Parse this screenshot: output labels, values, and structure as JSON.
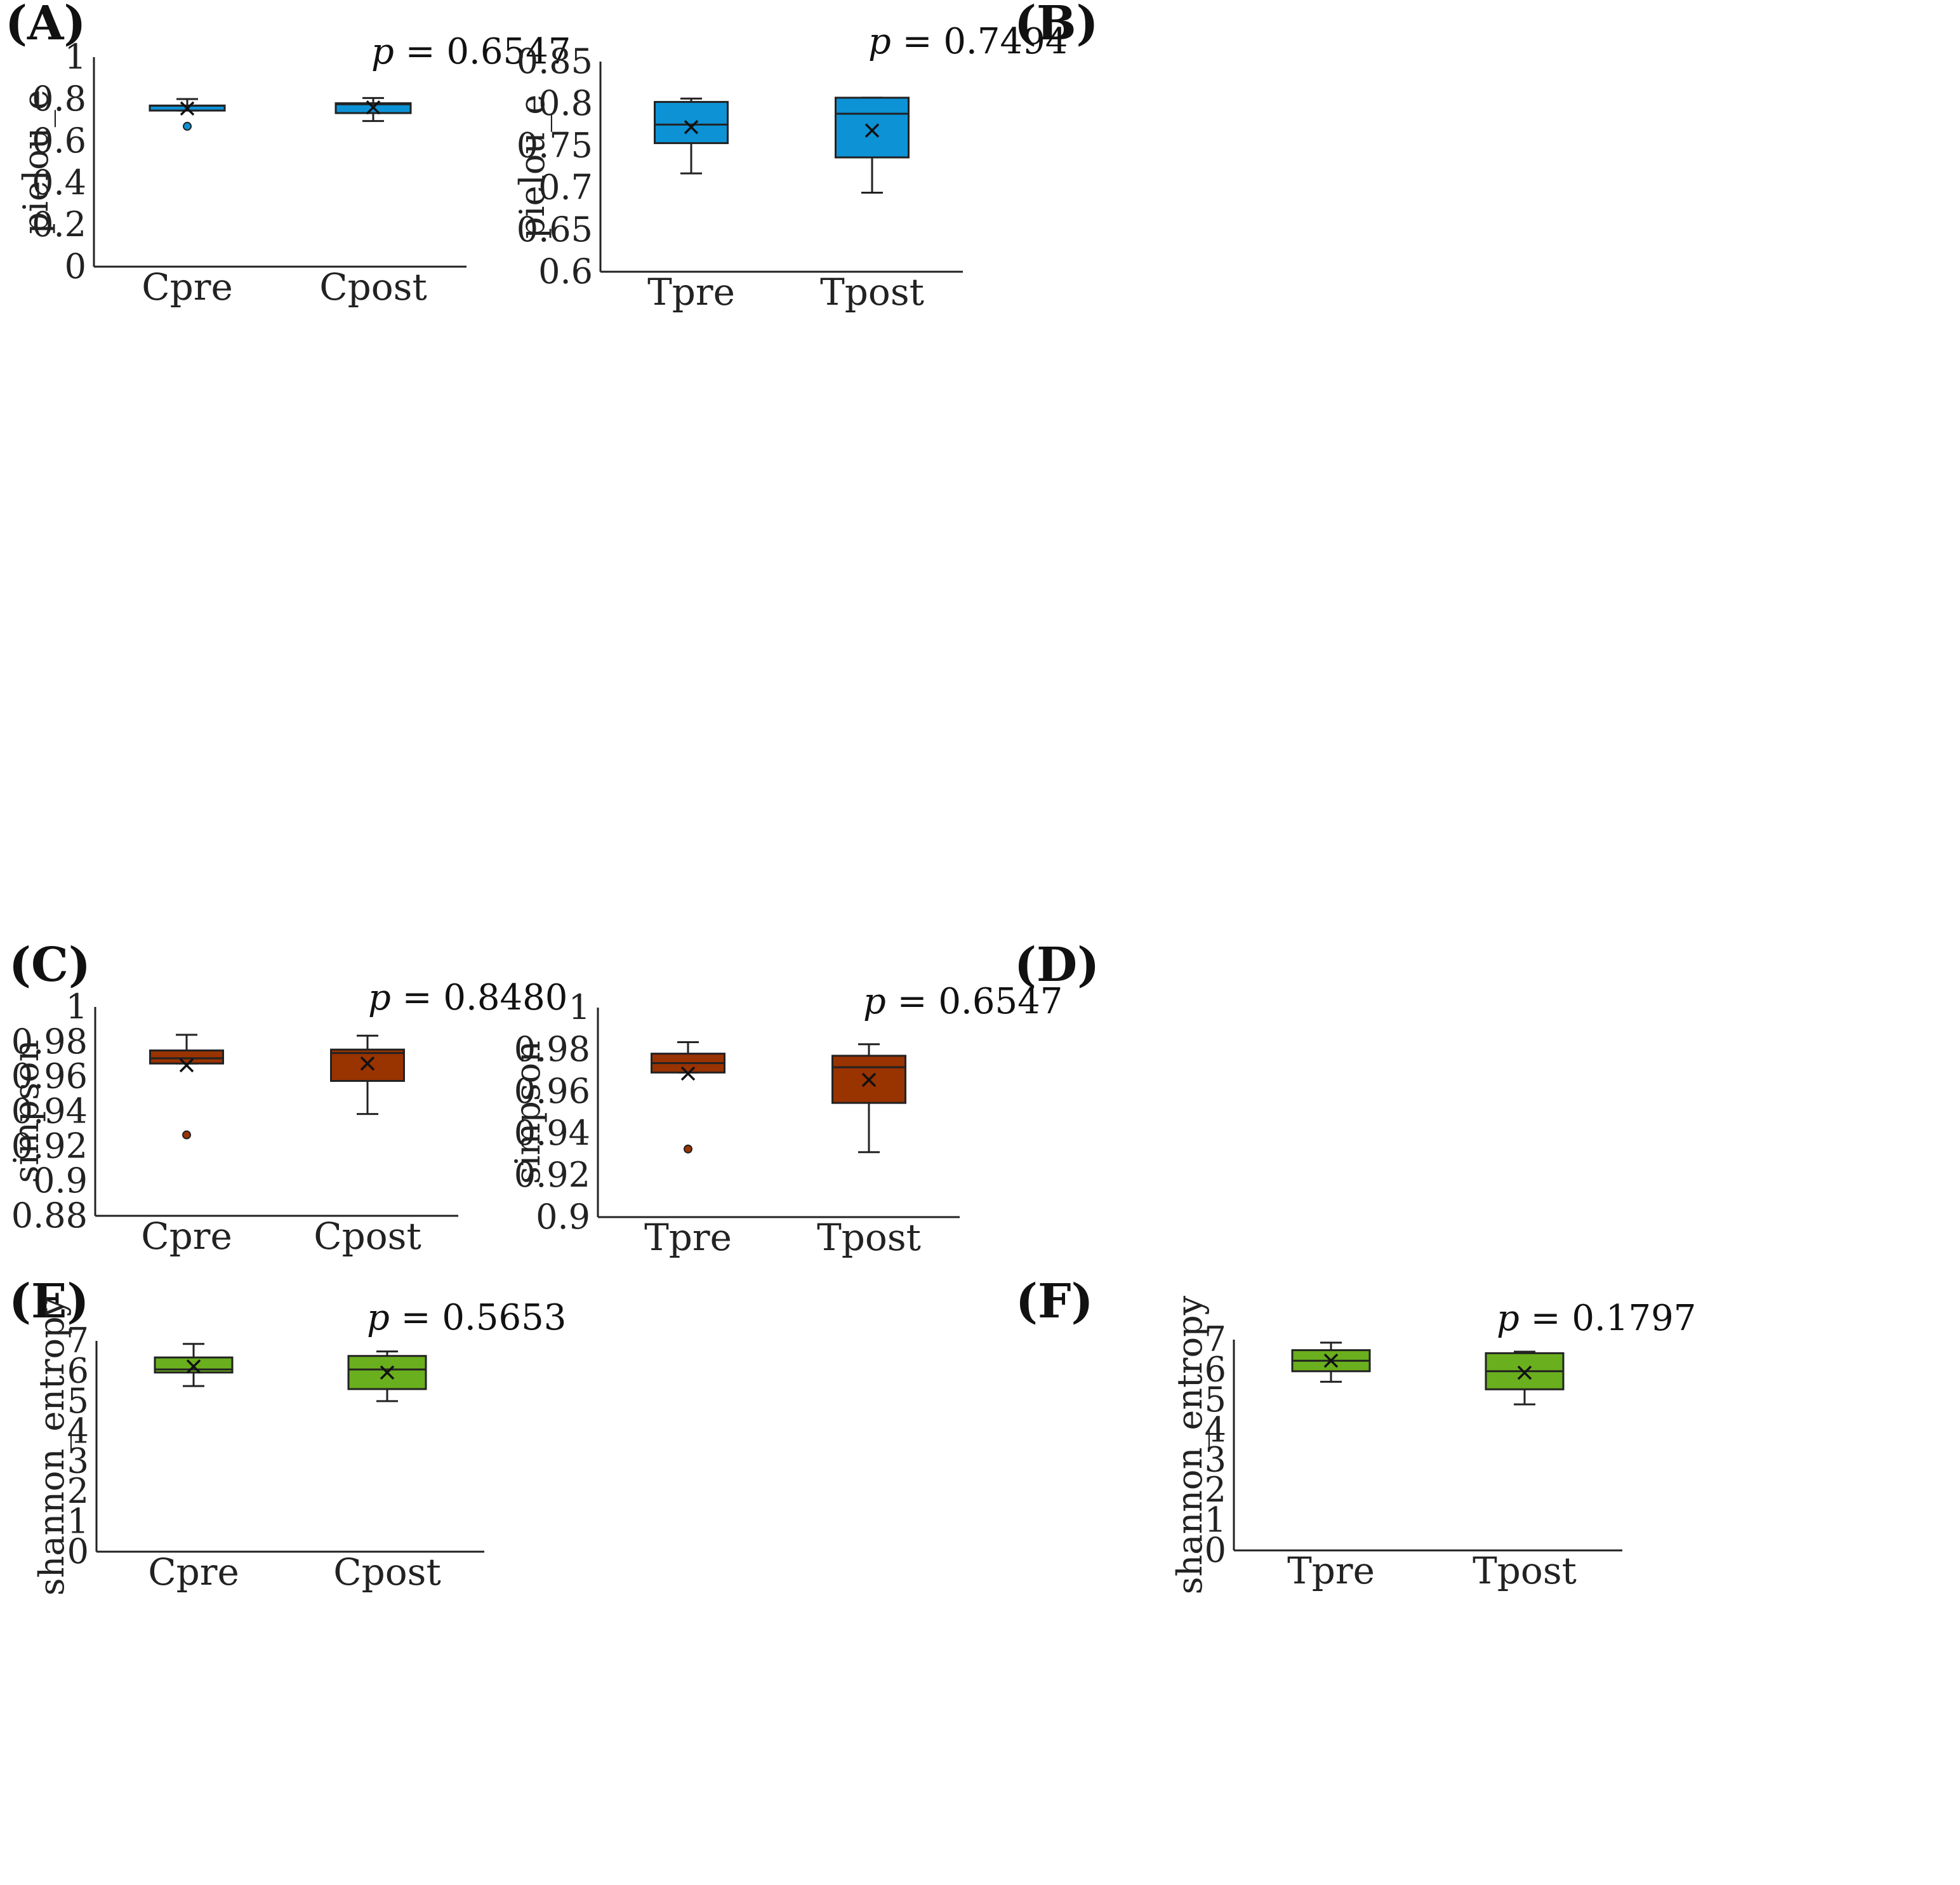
{
  "chart_data": [
    {
      "panel": "(A)",
      "type": "box",
      "color": "#0d92d6",
      "ylabel": "pielou_e",
      "ylim": [
        0,
        1
      ],
      "yticks": [
        0,
        0.2,
        0.4,
        0.6,
        0.8,
        1
      ],
      "ytick_labels": [
        "0",
        "0.2",
        "0.4",
        "0.6",
        "0.8",
        "1"
      ],
      "p_prefix": "p",
      "p_text": " = 0.6547",
      "categories": [
        "Cpre",
        "Cpost"
      ],
      "boxes": [
        {
          "category": "Cpre",
          "whisker_low": 0.745,
          "q1": 0.745,
          "median": 0.768,
          "q3": 0.769,
          "whisker_high": 0.8,
          "mean": 0.755,
          "outliers": [
            0.67
          ]
        },
        {
          "category": "Cpost",
          "whisker_low": 0.695,
          "q1": 0.733,
          "median": 0.775,
          "q3": 0.78,
          "whisker_high": 0.805,
          "mean": 0.76,
          "outliers": []
        }
      ]
    },
    {
      "panel": "(B)",
      "type": "box",
      "color": "#0d92d6",
      "ylabel": "pielou_e",
      "ylim": [
        0.6,
        0.85
      ],
      "yticks": [
        0.6,
        0.65,
        0.7,
        0.75,
        0.8,
        0.85
      ],
      "ytick_labels": [
        "0.6",
        "0.65",
        "0.7",
        "0.75",
        "0.8",
        "0.85"
      ],
      "p_prefix": "p",
      "p_text": " = 0.7494",
      "categories": [
        "Tpre",
        "Tpost"
      ],
      "boxes": [
        {
          "category": "Tpre",
          "whisker_low": 0.717,
          "q1": 0.753,
          "median": 0.775,
          "q3": 0.802,
          "whisker_high": 0.806,
          "mean": 0.772,
          "outliers": []
        },
        {
          "category": "Tpost",
          "whisker_low": 0.694,
          "q1": 0.736,
          "median": 0.788,
          "q3": 0.807,
          "whisker_high": 0.807,
          "mean": 0.768,
          "outliers": []
        }
      ]
    },
    {
      "panel": "(C)",
      "type": "box",
      "color": "#993300",
      "ylabel": "simpson",
      "ylim": [
        0.88,
        1
      ],
      "yticks": [
        0.88,
        0.9,
        0.92,
        0.94,
        0.96,
        0.98,
        1
      ],
      "ytick_labels": [
        "0.88",
        "0.9",
        "0.92",
        "0.94",
        "0.96",
        "0.98",
        "1"
      ],
      "p_prefix": "p",
      "p_text": " = 0.8480",
      "categories": [
        "Cpre",
        "Cpost"
      ],
      "boxes": [
        {
          "category": "Cpre",
          "whisker_low": 0.9675,
          "q1": 0.9675,
          "median": 0.9705,
          "q3": 0.975,
          "whisker_high": 0.984,
          "mean": 0.9665,
          "outliers": [
            0.9265
          ]
        },
        {
          "category": "Cpost",
          "whisker_low": 0.9385,
          "q1": 0.9575,
          "median": 0.9735,
          "q3": 0.9755,
          "whisker_high": 0.9835,
          "mean": 0.9675,
          "outliers": []
        }
      ]
    },
    {
      "panel": "(D)",
      "type": "box",
      "color": "#993300",
      "ylabel": "simpson",
      "ylim": [
        0.9,
        1
      ],
      "yticks": [
        0.9,
        0.92,
        0.94,
        0.96,
        0.98,
        1
      ],
      "ytick_labels": [
        "0.9",
        "0.92",
        "0.94",
        "0.96",
        "0.98",
        "1"
      ],
      "p_prefix": "p",
      "p_text": " = 0.6547",
      "categories": [
        "Tpre",
        "Tpost"
      ],
      "boxes": [
        {
          "category": "Tpre",
          "whisker_low": 0.969,
          "q1": 0.969,
          "median": 0.9735,
          "q3": 0.978,
          "whisker_high": 0.9835,
          "mean": 0.9685,
          "outliers": [
            0.9325
          ]
        },
        {
          "category": "Tpost",
          "whisker_low": 0.931,
          "q1": 0.9545,
          "median": 0.9715,
          "q3": 0.977,
          "whisker_high": 0.9825,
          "mean": 0.9655,
          "outliers": []
        }
      ]
    },
    {
      "panel": "(E)",
      "type": "box",
      "color": "#6aaf1e",
      "ylabel": "shannon_entropy",
      "ylim": [
        0,
        7
      ],
      "yticks": [
        0,
        1,
        2,
        3,
        4,
        5,
        6,
        7
      ],
      "ytick_labels": [
        "0",
        "1",
        "2",
        "3",
        "4",
        "5",
        "6",
        "7"
      ],
      "p_prefix": "p",
      "p_text": " = 0.5653",
      "categories": [
        "Cpre",
        "Cpost"
      ],
      "boxes": [
        {
          "category": "Cpre",
          "whisker_low": 5.5,
          "q1": 5.95,
          "median": 6.05,
          "q3": 6.45,
          "whisker_high": 6.9,
          "mean": 6.15,
          "outliers": []
        },
        {
          "category": "Cpost",
          "whisker_low": 5.0,
          "q1": 5.4,
          "median": 6.05,
          "q3": 6.5,
          "whisker_high": 6.65,
          "mean": 5.95,
          "outliers": []
        }
      ]
    },
    {
      "panel": "(F)",
      "type": "box",
      "color": "#6aaf1e",
      "ylabel": "shannon_entropy",
      "ylim": [
        0,
        7
      ],
      "yticks": [
        0,
        1,
        2,
        3,
        4,
        5,
        6,
        7
      ],
      "ytick_labels": [
        "0",
        "1",
        "2",
        "3",
        "4",
        "5",
        "6",
        "7"
      ],
      "p_prefix": "p",
      "p_text": " = 0.1797",
      "categories": [
        "Tpre",
        "Tpost"
      ],
      "boxes": [
        {
          "category": "Tpre",
          "whisker_low": 5.6,
          "q1": 5.95,
          "median": 6.3,
          "q3": 6.65,
          "whisker_high": 6.9,
          "mean": 6.3,
          "outliers": []
        },
        {
          "category": "Tpost",
          "whisker_low": 4.85,
          "q1": 5.35,
          "median": 5.95,
          "q3": 6.55,
          "whisker_high": 6.6,
          "mean": 5.9,
          "outliers": []
        }
      ]
    }
  ]
}
